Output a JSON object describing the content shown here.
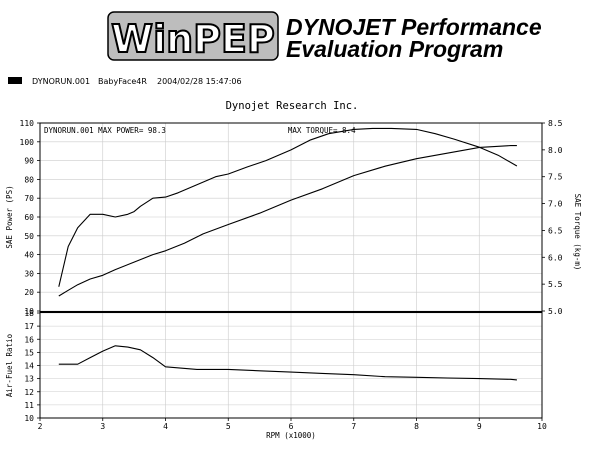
{
  "header": {
    "logo_text": "WinPEP",
    "title_line1": "DYNOJET Performance",
    "title_line2": "Evaluation Program"
  },
  "run_info": {
    "file": "DYNORUN.001",
    "name": "BabyFace4R",
    "timestamp": "2004/02/28 15:47:06"
  },
  "chart_title": "Dynojet  Research  Inc.",
  "colors": {
    "line": "#000000",
    "background": "#ffffff",
    "grid": "#cccccc"
  },
  "chart_data": [
    {
      "type": "line",
      "title": "Dynojet  Research  Inc.",
      "annotations": {
        "left": "DYNORUN.001  MAX POWER= 98.3",
        "right": "MAX TORQUE= 8.4"
      },
      "x_label": "RPM (x1000)",
      "x_ticks": [
        "2",
        "3",
        "4",
        "5",
        "6",
        "7",
        "8",
        "9",
        "10"
      ],
      "xlim": [
        2,
        10
      ],
      "ylabel_left": "SAE Power (PS)",
      "ylim_left": [
        10,
        110
      ],
      "y_ticks_left": [
        "10",
        "20",
        "30",
        "40",
        "50",
        "60",
        "70",
        "80",
        "90",
        "100",
        "110"
      ],
      "ylabel_right": "SAE Torque (kg-m)",
      "ylim_right": [
        5.0,
        8.5
      ],
      "y_ticks_right": [
        "5.0",
        "5.5",
        "6.0",
        "6.5",
        "7.0",
        "7.5",
        "8.0",
        "8.5"
      ],
      "grid": true,
      "series": [
        {
          "axis": "left",
          "x": [
            2.3,
            2.45,
            2.6,
            2.8,
            3.0,
            3.2,
            3.5,
            3.8,
            4.0,
            4.3,
            4.6,
            5.0,
            5.5,
            6.0,
            6.5,
            7.0,
            7.5,
            8.0,
            8.5,
            9.0,
            9.5,
            9.6
          ],
          "values": [
            18,
            21,
            24,
            27,
            29,
            32,
            36,
            40,
            42,
            46,
            51,
            56,
            62,
            69,
            75,
            82,
            87,
            91,
            94,
            97,
            98,
            98
          ]
        },
        {
          "axis": "right",
          "x": [
            2.3,
            2.45,
            2.6,
            2.8,
            3.0,
            3.2,
            3.4,
            3.5,
            3.6,
            3.8,
            4.0,
            4.2,
            4.5,
            4.8,
            5.0,
            5.3,
            5.6,
            6.0,
            6.3,
            6.6,
            7.0,
            7.3,
            7.6,
            8.0,
            8.3,
            8.6,
            9.0,
            9.3,
            9.6
          ],
          "values": [
            5.45,
            6.2,
            6.55,
            6.8,
            6.8,
            6.75,
            6.8,
            6.85,
            6.95,
            7.1,
            7.12,
            7.2,
            7.35,
            7.5,
            7.55,
            7.68,
            7.8,
            8.0,
            8.18,
            8.3,
            8.38,
            8.4,
            8.4,
            8.38,
            8.3,
            8.2,
            8.05,
            7.9,
            7.7
          ]
        }
      ]
    },
    {
      "type": "line",
      "ylabel": "Air-Fuel Ratio",
      "ylim": [
        10,
        18
      ],
      "y_ticks": [
        "10",
        "11",
        "12",
        "13",
        "14",
        "15",
        "16",
        "17",
        "18"
      ],
      "xlim": [
        2,
        10
      ],
      "grid": true,
      "series": [
        {
          "x": [
            2.3,
            2.6,
            2.8,
            3.0,
            3.2,
            3.4,
            3.6,
            3.8,
            4.0,
            4.5,
            5.0,
            5.5,
            6.0,
            6.5,
            7.0,
            7.5,
            8.0,
            8.5,
            9.0,
            9.5,
            9.6
          ],
          "values": [
            14.1,
            14.1,
            14.6,
            15.1,
            15.5,
            15.4,
            15.2,
            14.6,
            13.9,
            13.7,
            13.7,
            13.6,
            13.5,
            13.4,
            13.3,
            13.15,
            13.1,
            13.05,
            13.0,
            12.95,
            12.9
          ]
        }
      ]
    }
  ]
}
